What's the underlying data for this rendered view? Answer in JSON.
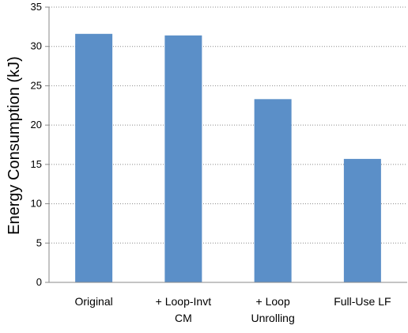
{
  "chart_data": {
    "type": "bar",
    "categories": [
      [
        "Original"
      ],
      [
        "+ Loop-Invt",
        "CM"
      ],
      [
        "+ Loop",
        "Unrolling"
      ],
      [
        "Full-Use LF"
      ]
    ],
    "values": [
      31.6,
      31.4,
      23.3,
      15.7
    ],
    "ylabel": "Energy Consumption (kJ)",
    "ylim": [
      0,
      35
    ],
    "yticks": [
      0,
      5,
      10,
      15,
      20,
      25,
      30,
      35
    ],
    "grid": true,
    "colors": {
      "bar": "#5B8FC8",
      "grid": "#8a8a8a",
      "axis": "#8a8a8a"
    }
  }
}
